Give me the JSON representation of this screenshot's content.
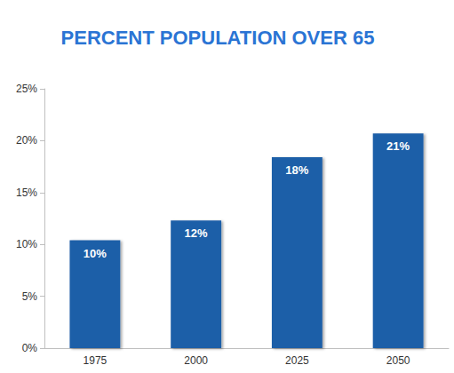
{
  "chart_data": {
    "type": "bar",
    "title": "PERCENT POPULATION OVER 65",
    "categories": [
      "1975",
      "2000",
      "2025",
      "2050"
    ],
    "values": [
      10.4,
      12.3,
      18.4,
      20.7
    ],
    "value_labels": [
      "10%",
      "12%",
      "18%",
      "21%"
    ],
    "data_labels": true,
    "color": "#1f5fa8",
    "ylim": [
      0,
      25
    ],
    "yticks": [
      {
        "value": 0,
        "label": "0%"
      },
      {
        "value": 5,
        "label": "5%"
      },
      {
        "value": 10,
        "label": "10%"
      },
      {
        "value": 15,
        "label": "15%"
      },
      {
        "value": 20,
        "label": "20%"
      },
      {
        "value": 25,
        "label": "25%"
      }
    ],
    "grid": false
  }
}
